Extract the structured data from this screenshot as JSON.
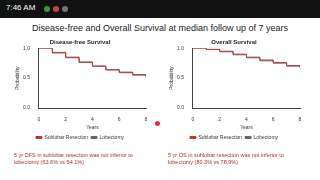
{
  "status_time": "7:46 AM",
  "slide_title": "Disease-free and Overall Survival at median follow up of 7 years",
  "chart_data": [
    {
      "type": "line",
      "title": "Disease-free Survival",
      "x_label": "Years",
      "y_label": "Probability",
      "annotations": [
        "5 yr DFS in sublobar resection was not inferior to lobectomy (63.6% vs 64.1%)"
      ],
      "x": [
        0,
        1,
        2,
        3,
        4,
        5,
        6,
        7,
        8
      ],
      "series": [
        {
          "name": "Sublobar Resection",
          "color": "#c0392b",
          "line_style": "step",
          "values": [
            1,
            0.93,
            0.85,
            0.77,
            0.7,
            0.636,
            0.59,
            0.55,
            0.52
          ]
        },
        {
          "name": "Lobectomy",
          "color": "#666666",
          "line_style": "step",
          "values": [
            1,
            0.92,
            0.84,
            0.76,
            0.7,
            0.641,
            0.6,
            0.56,
            0.53
          ]
        }
      ],
      "xlim": [
        0,
        8
      ],
      "xticks": [
        0,
        2,
        4,
        6,
        8
      ],
      "ylim": [
        0,
        1
      ],
      "yticks": [
        {
          "value": 0,
          "label": "0.0"
        },
        {
          "value": 0.5,
          "label": "0.5"
        },
        {
          "value": 1,
          "label": "1.0"
        }
      ],
      "grid": false,
      "legend": "bottom"
    },
    {
      "type": "line",
      "title": "Overall Survival",
      "x_label": "Years",
      "y_label": "Probability",
      "annotations": [
        "5 yr OS in sublobar resection was not inferior to lobectomy (80.3% vs 78.9%)"
      ],
      "x": [
        0,
        1,
        2,
        3,
        4,
        5,
        6,
        7,
        8
      ],
      "series": [
        {
          "name": "Sublobar Resection",
          "color": "#c0392b",
          "line_style": "step",
          "values": [
            1,
            0.98,
            0.95,
            0.9,
            0.85,
            0.803,
            0.76,
            0.71,
            0.68
          ]
        },
        {
          "name": "Lobectomy",
          "color": "#666666",
          "line_style": "step",
          "values": [
            1,
            0.98,
            0.94,
            0.89,
            0.84,
            0.789,
            0.75,
            0.7,
            0.67
          ]
        }
      ],
      "xlim": [
        0,
        8
      ],
      "xticks": [
        0,
        2,
        4,
        6,
        8
      ],
      "ylim": [
        0,
        1
      ],
      "yticks": [
        {
          "value": 0,
          "label": "0.0"
        },
        {
          "value": 0.5,
          "label": "0.5"
        },
        {
          "value": 1,
          "label": "1.0"
        }
      ],
      "grid": false,
      "legend": "bottom"
    }
  ]
}
